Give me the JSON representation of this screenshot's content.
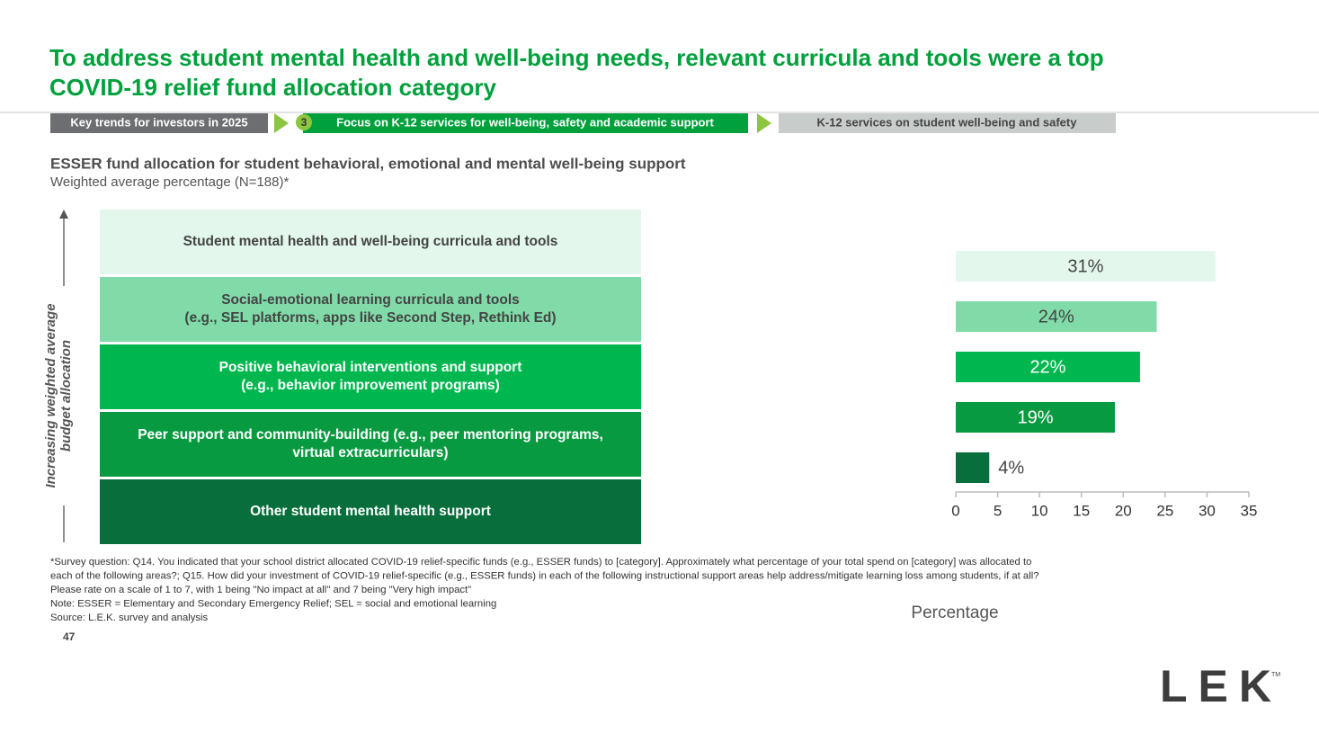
{
  "header": {
    "title": "To address student mental health and well-being needs, relevant curricula and tools were a top COVID-19 relief fund allocation category"
  },
  "breadcrumb": {
    "items": [
      "Key trends for investors in 2025",
      "Focus on K-12 services for well-being, safety and academic support",
      "K-12 services on student well-being and safety"
    ],
    "step": "3"
  },
  "chart_data": {
    "type": "bar",
    "orientation": "horizontal",
    "title": "ESSER fund allocation for student behavioral, emotional and mental well-being support",
    "subtitle": "Weighted average percentage (N=188)*",
    "ylabel": "Increasing weighted average\nbudget allocation",
    "xlabel": "Percentage",
    "categories": [
      "Student mental health and well-being curricula and tools",
      "Social-emotional learning curricula and tools\n(e.g., SEL platforms, apps like Second Step, Rethink Ed)",
      "Positive behavioral interventions and support\n(e.g., behavior improvement programs)",
      "Peer support and community-building (e.g., peer mentoring programs,\nvirtual extracurriculars)",
      "Other student mental health support"
    ],
    "values": [
      31,
      24,
      22,
      19,
      4
    ],
    "value_labels": [
      "31%",
      "24%",
      "22%",
      "19%",
      "4%"
    ],
    "colors": [
      "#e3f7ec",
      "#80dba8",
      "#00b74f",
      "#089a40",
      "#086f3c"
    ],
    "xlim": [
      0,
      35
    ],
    "xticks": [
      0,
      5,
      10,
      15,
      20,
      25,
      30,
      35
    ]
  },
  "footnotes": [
    "*Survey question: Q14. You indicated that your school district allocated COVID-19 relief-specific funds (e.g., ESSER funds) to [category]. Approximately what percentage of your total spend on [category] was allocated to",
    "each of the following areas?; Q15. How did your investment of COVID-19 relief-specific (e.g., ESSER funds) in each of the following instructional support areas help address/mitigate learning loss among students, if at all?",
    "Please rate on a scale of 1 to 7, with 1 being \"No impact at all\" and 7 being \"Very high impact\"",
    "Note: ESSER = Elementary and Secondary Emergency Relief; SEL = social and emotional learning",
    "Source: L.E.K. survey and analysis"
  ],
  "page_number": "47",
  "logo": {
    "text": "LEK",
    "mark": "TM"
  }
}
